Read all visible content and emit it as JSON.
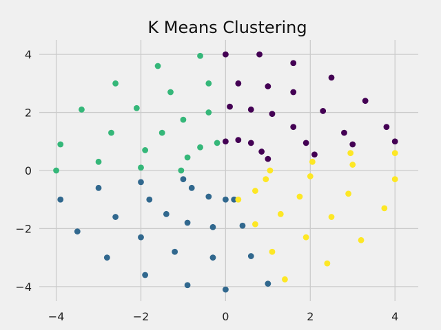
{
  "chart_data": {
    "type": "scatter",
    "title": "K Means Clustering",
    "xlabel": "",
    "ylabel": "",
    "xlim": [
      -4.4,
      4.55
    ],
    "ylim": [
      -4.5,
      4.5
    ],
    "xticks": [
      -4,
      -2,
      0,
      2,
      4
    ],
    "yticks": [
      -4,
      -2,
      0,
      2,
      4
    ],
    "xtick_labels": [
      "−4",
      "−2",
      "0",
      "2",
      "4"
    ],
    "ytick_labels": [
      "−4",
      "−2",
      "0",
      "2",
      "4"
    ],
    "grid": true,
    "background": "#f0f0f0",
    "point_count_per_cluster": "dense sample along three concentric rings (radii approx 1, 3, 4)",
    "colors": {
      "purple": "#440154",
      "blue": "#31688e",
      "green": "#35b779",
      "yellow": "#fde725"
    },
    "series": [
      {
        "color": "#440154",
        "values": [
          {
            "x": 0.0,
            "y": 1.0
          },
          {
            "x": 0.3,
            "y": 1.05
          },
          {
            "x": 0.6,
            "y": 0.95
          },
          {
            "x": 0.85,
            "y": 0.65
          },
          {
            "x": 1.0,
            "y": 0.4
          },
          {
            "x": 0.1,
            "y": 2.2
          },
          {
            "x": 0.6,
            "y": 2.1
          },
          {
            "x": 1.1,
            "y": 1.95
          },
          {
            "x": 1.6,
            "y": 1.5
          },
          {
            "x": 1.9,
            "y": 0.95
          },
          {
            "x": 2.1,
            "y": 0.55
          },
          {
            "x": 0.3,
            "y": 3.0
          },
          {
            "x": 1.0,
            "y": 2.9
          },
          {
            "x": 1.6,
            "y": 2.7
          },
          {
            "x": 2.3,
            "y": 2.05
          },
          {
            "x": 2.8,
            "y": 1.3
          },
          {
            "x": 3.0,
            "y": 0.9
          },
          {
            "x": 0.0,
            "y": 4.0
          },
          {
            "x": 0.8,
            "y": 4.0
          },
          {
            "x": 1.6,
            "y": 3.7
          },
          {
            "x": 2.5,
            "y": 3.2
          },
          {
            "x": 3.3,
            "y": 2.4
          },
          {
            "x": 3.8,
            "y": 1.5
          },
          {
            "x": 4.0,
            "y": 1.0
          }
        ]
      },
      {
        "color": "#31688e",
        "values": [
          {
            "x": -1.0,
            "y": -0.3
          },
          {
            "x": -0.8,
            "y": -0.6
          },
          {
            "x": -0.4,
            "y": -0.9
          },
          {
            "x": 0.0,
            "y": -1.0
          },
          {
            "x": 0.2,
            "y": -1.0
          },
          {
            "x": -2.0,
            "y": -0.4
          },
          {
            "x": -1.8,
            "y": -1.0
          },
          {
            "x": -1.4,
            "y": -1.5
          },
          {
            "x": -0.9,
            "y": -1.8
          },
          {
            "x": -0.3,
            "y": -1.95
          },
          {
            "x": 0.4,
            "y": -1.9
          },
          {
            "x": -3.0,
            "y": -0.6
          },
          {
            "x": -2.6,
            "y": -1.6
          },
          {
            "x": -2.0,
            "y": -2.3
          },
          {
            "x": -1.2,
            "y": -2.8
          },
          {
            "x": -0.3,
            "y": -3.0
          },
          {
            "x": 0.6,
            "y": -2.95
          },
          {
            "x": -3.9,
            "y": -1.0
          },
          {
            "x": -3.5,
            "y": -2.1
          },
          {
            "x": -2.8,
            "y": -3.0
          },
          {
            "x": -1.9,
            "y": -3.6
          },
          {
            "x": -0.9,
            "y": -3.95
          },
          {
            "x": 0.0,
            "y": -4.1
          },
          {
            "x": 1.0,
            "y": -3.9
          }
        ]
      },
      {
        "color": "#35b779",
        "values": [
          {
            "x": -0.2,
            "y": 0.95
          },
          {
            "x": -0.6,
            "y": 0.8
          },
          {
            "x": -0.9,
            "y": 0.45
          },
          {
            "x": -1.05,
            "y": 0.0
          },
          {
            "x": -0.4,
            "y": 2.0
          },
          {
            "x": -1.0,
            "y": 1.75
          },
          {
            "x": -1.5,
            "y": 1.3
          },
          {
            "x": -1.9,
            "y": 0.7
          },
          {
            "x": -2.0,
            "y": 0.1
          },
          {
            "x": -0.4,
            "y": 3.0
          },
          {
            "x": -1.3,
            "y": 2.7
          },
          {
            "x": -2.1,
            "y": 2.15
          },
          {
            "x": -2.7,
            "y": 1.3
          },
          {
            "x": -3.0,
            "y": 0.3
          },
          {
            "x": -0.6,
            "y": 3.95
          },
          {
            "x": -1.6,
            "y": 3.6
          },
          {
            "x": -2.6,
            "y": 3.0
          },
          {
            "x": -3.4,
            "y": 2.1
          },
          {
            "x": -3.9,
            "y": 0.9
          },
          {
            "x": -4.0,
            "y": 0.0
          }
        ]
      },
      {
        "color": "#fde725",
        "values": [
          {
            "x": 0.3,
            "y": -1.0
          },
          {
            "x": 0.7,
            "y": -0.7
          },
          {
            "x": 0.95,
            "y": -0.3
          },
          {
            "x": 1.05,
            "y": 0.0
          },
          {
            "x": 0.7,
            "y": -1.85
          },
          {
            "x": 1.3,
            "y": -1.5
          },
          {
            "x": 1.75,
            "y": -0.9
          },
          {
            "x": 2.0,
            "y": -0.2
          },
          {
            "x": 2.05,
            "y": 0.3
          },
          {
            "x": 1.1,
            "y": -2.8
          },
          {
            "x": 1.9,
            "y": -2.3
          },
          {
            "x": 2.5,
            "y": -1.6
          },
          {
            "x": 2.9,
            "y": -0.8
          },
          {
            "x": 3.0,
            "y": 0.2
          },
          {
            "x": 2.95,
            "y": 0.6
          },
          {
            "x": 1.4,
            "y": -3.75
          },
          {
            "x": 2.4,
            "y": -3.2
          },
          {
            "x": 3.2,
            "y": -2.4
          },
          {
            "x": 3.75,
            "y": -1.3
          },
          {
            "x": 4.0,
            "y": -0.3
          },
          {
            "x": 4.0,
            "y": 0.6
          }
        ]
      }
    ]
  }
}
